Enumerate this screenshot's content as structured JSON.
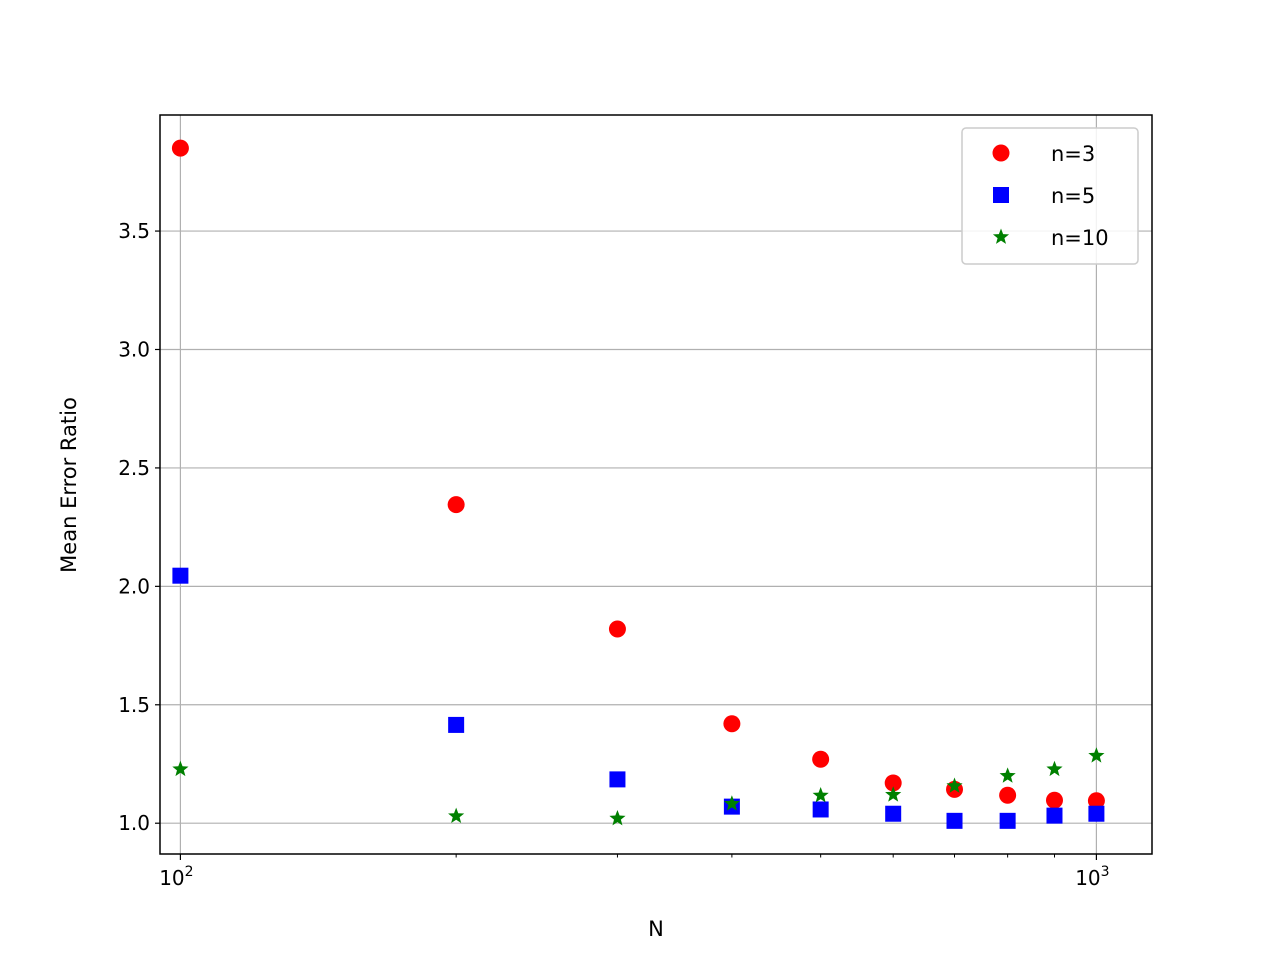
{
  "chart_data": {
    "type": "scatter",
    "title": "",
    "xlabel": "N",
    "ylabel": "Mean Error Ratio",
    "xscale": "log",
    "xlim": [
      95,
      1150
    ],
    "ylim": [
      0.87,
      3.99
    ],
    "grid": true,
    "legend_position": "top-right",
    "x": [
      100,
      200,
      300,
      400,
      500,
      600,
      700,
      800,
      900,
      1000
    ],
    "x_tick_labels": [
      {
        "value": 100,
        "base": "10",
        "exp": "2"
      },
      {
        "value": 1000,
        "base": "10",
        "exp": "3"
      }
    ],
    "y_ticks": [
      1.0,
      1.5,
      2.0,
      2.5,
      3.0,
      3.5
    ],
    "y_tick_labels": [
      "1.0",
      "1.5",
      "2.0",
      "2.5",
      "3.0",
      "3.5"
    ],
    "series": [
      {
        "name": "n=3",
        "marker": "circle",
        "color": "#ff0000",
        "values": [
          3.85,
          2.345,
          1.82,
          1.42,
          1.27,
          1.17,
          1.143,
          1.118,
          1.097,
          1.095
        ]
      },
      {
        "name": "n=5",
        "marker": "square",
        "color": "#0000ff",
        "values": [
          2.045,
          1.415,
          1.185,
          1.07,
          1.058,
          1.04,
          1.01,
          1.01,
          1.032,
          1.04
        ]
      },
      {
        "name": "n=10",
        "marker": "star",
        "color": "#008000",
        "values": [
          1.228,
          1.03,
          1.02,
          1.082,
          1.117,
          1.12,
          1.157,
          1.2,
          1.228,
          1.285
        ]
      }
    ]
  }
}
